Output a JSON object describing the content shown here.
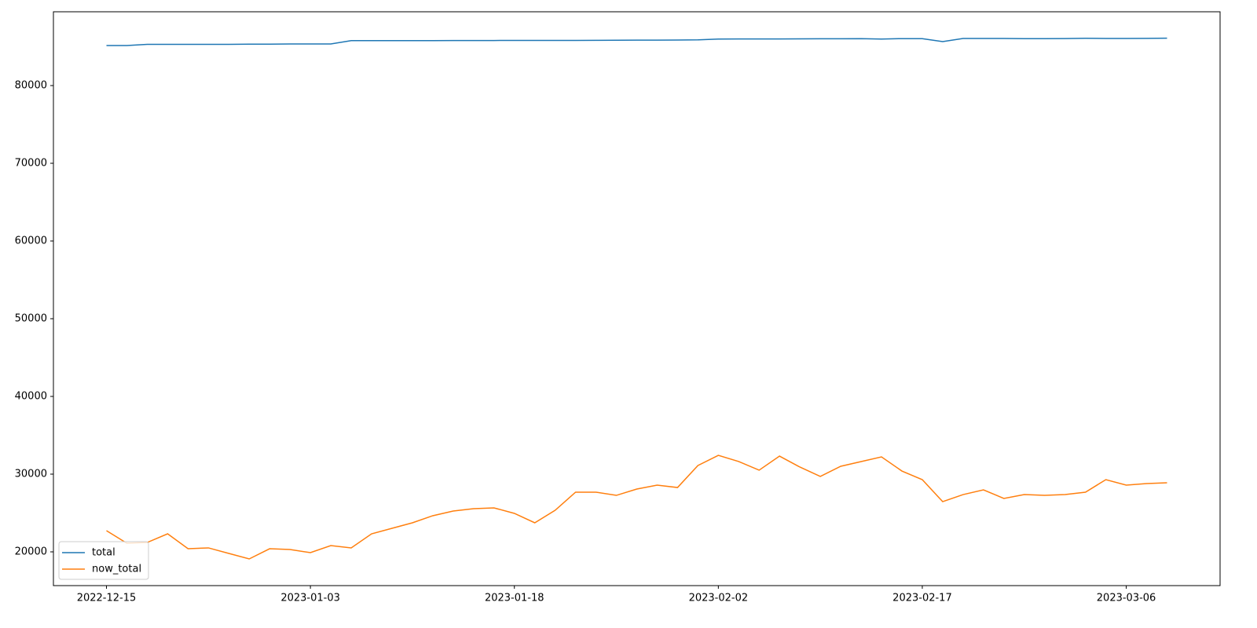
{
  "chart_data": {
    "type": "line",
    "categories": [
      "2022-12-15",
      null,
      null,
      null,
      null,
      null,
      null,
      null,
      null,
      null,
      "2023-01-03",
      null,
      null,
      null,
      null,
      null,
      null,
      null,
      null,
      null,
      "2023-01-18",
      null,
      null,
      null,
      null,
      null,
      null,
      null,
      null,
      null,
      "2023-02-02",
      null,
      null,
      null,
      null,
      null,
      null,
      null,
      null,
      null,
      "2023-02-17",
      null,
      null,
      null,
      null,
      null,
      null,
      null,
      null,
      null,
      "2023-03-06",
      null,
      null
    ],
    "series": [
      {
        "name": "total",
        "color": "#1f77b4",
        "values": [
          85150,
          85150,
          85300,
          85300,
          85300,
          85300,
          85300,
          85330,
          85330,
          85360,
          85360,
          85360,
          85780,
          85780,
          85780,
          85780,
          85780,
          85790,
          85800,
          85800,
          85810,
          85810,
          85810,
          85810,
          85820,
          85830,
          85840,
          85850,
          85860,
          85880,
          85990,
          86000,
          86000,
          86000,
          86010,
          86020,
          86020,
          86040,
          85990,
          86040,
          86040,
          85660,
          86060,
          86060,
          86060,
          86040,
          86040,
          86050,
          86080,
          86060,
          86060,
          86070,
          86100
        ]
      },
      {
        "name": "now_total",
        "color": "#ff7f0e",
        "values": [
          22730,
          21110,
          21210,
          22320,
          20400,
          20510,
          19800,
          19090,
          20400,
          20300,
          19900,
          20810,
          20510,
          22320,
          23030,
          23740,
          24650,
          25250,
          25560,
          25660,
          24950,
          23740,
          25350,
          27680,
          27680,
          27270,
          28080,
          28590,
          28280,
          31110,
          32420,
          31620,
          30510,
          32320,
          30910,
          29700,
          31010,
          31620,
          32220,
          30400,
          29290,
          26460,
          27370,
          27980,
          26870,
          27370,
          27270,
          27370,
          27680,
          29290,
          28590,
          28790,
          28890
        ]
      }
    ],
    "ylim": [
      15657,
      89495
    ],
    "yticks": [
      20000,
      30000,
      40000,
      50000,
      60000,
      70000,
      80000
    ],
    "legend": "lower left"
  }
}
